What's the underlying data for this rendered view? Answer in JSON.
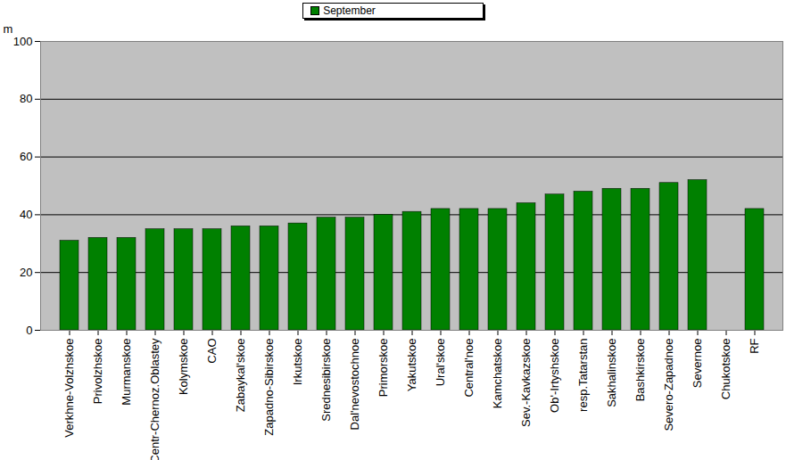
{
  "chart_data": {
    "type": "bar",
    "ylabel": "m",
    "categories": [
      "Verkhne-Volzhskoe",
      "Privolzhskoe",
      "Murmanskoe",
      "Centr-Chernoz.Oblastey",
      "Kolymskoe",
      "CAO",
      "Zabaykal'skoe",
      "Zapadno-Sibirskoe",
      "Irkutskoe",
      "Srednesibirskoe",
      "Dal'nevostochnoe",
      "Primorskoe",
      "Yakutskoe",
      "Ural'skoe",
      "Central'noe",
      "Kamchatskoe",
      "Sev.-Kavkazskoe",
      "Ob'-Irtyshskoe",
      "resp.Tatarstan",
      "Sakhalinskoe",
      "Bashkirskoe",
      "Severo-Zapadnoe",
      "Severnoe",
      "Chukotskoe",
      "RF"
    ],
    "series": [
      {
        "name": "September",
        "color": "#008000",
        "values": [
          31,
          32,
          32,
          35,
          35,
          35,
          36,
          36,
          37,
          39,
          39,
          40,
          41,
          42,
          42,
          42,
          44,
          47,
          48,
          49,
          49,
          51,
          52,
          null,
          42
        ]
      }
    ],
    "ylim": [
      0,
      100
    ],
    "yticks": [
      0,
      20,
      40,
      60,
      80,
      100
    ],
    "grid": true,
    "legend": "top"
  }
}
